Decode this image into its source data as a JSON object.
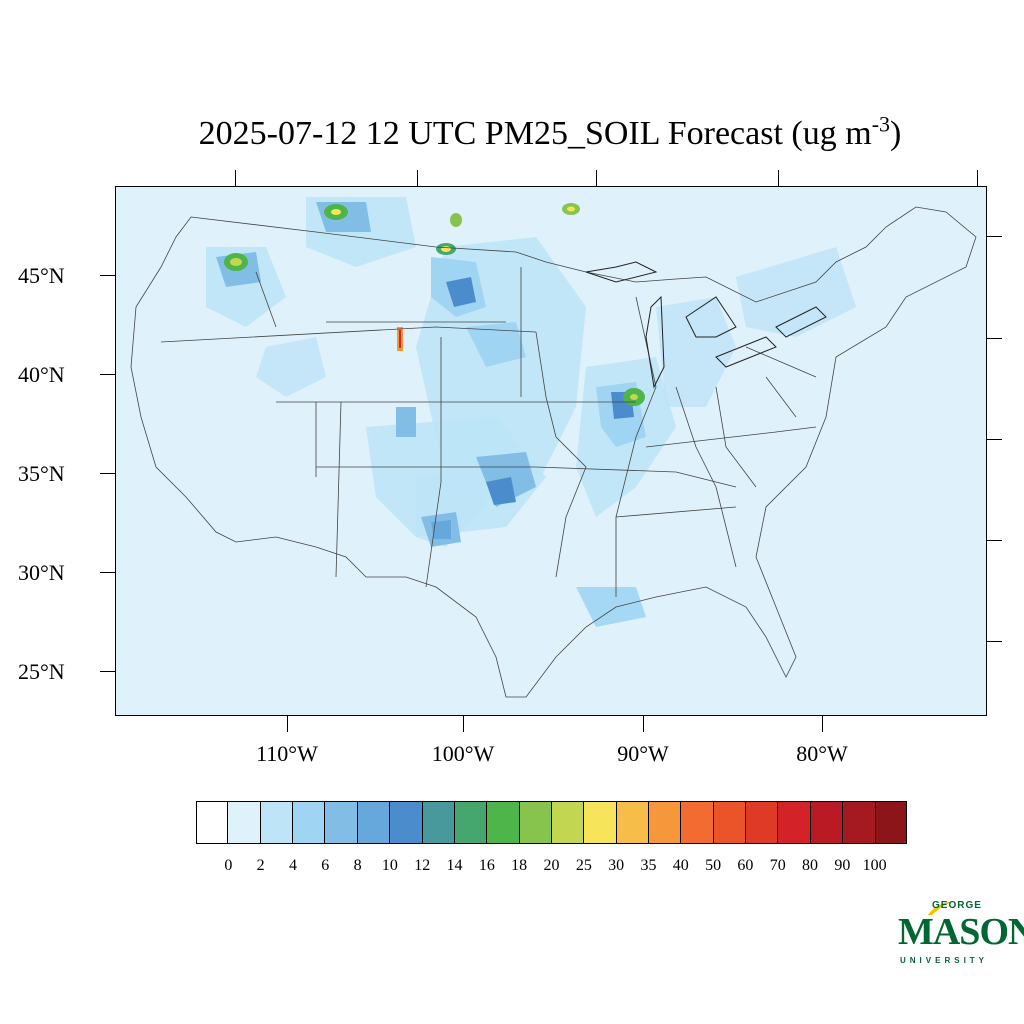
{
  "title": {
    "main": "2025-07-12 12 UTC PM25_SOIL Forecast (ug m",
    "superscript": "-3",
    "close": ")"
  },
  "map": {
    "region": "Contiguous United States",
    "background_color": "#dff1fb",
    "latitude_labels": [
      "45°N",
      "40°N",
      "35°N",
      "30°N",
      "25°N"
    ],
    "longitude_labels": [
      "110°W",
      "100°W",
      "90°W",
      "80°W"
    ]
  },
  "colorbar": {
    "labels": [
      "0",
      "2",
      "4",
      "6",
      "8",
      "10",
      "12",
      "14",
      "16",
      "18",
      "20",
      "25",
      "30",
      "35",
      "40",
      "50",
      "60",
      "70",
      "80",
      "90",
      "100"
    ],
    "colors": [
      "#ffffff",
      "#dff1fb",
      "#bde4f7",
      "#9fd5f3",
      "#82bde6",
      "#67a8dc",
      "#4a8ccc",
      "#47999c",
      "#45a66e",
      "#4db54a",
      "#86c44e",
      "#c3d651",
      "#f6e55a",
      "#f6bd48",
      "#f6973c",
      "#f26b30",
      "#ea5428",
      "#df3a26",
      "#d32328",
      "#ba1a24",
      "#a51a20",
      "#8b1519"
    ]
  },
  "logo": {
    "line1": "GEORGE",
    "line2": "MASON",
    "line3": "UNIVERSITY",
    "color": "#006633",
    "accent_color": "#f2c200"
  }
}
